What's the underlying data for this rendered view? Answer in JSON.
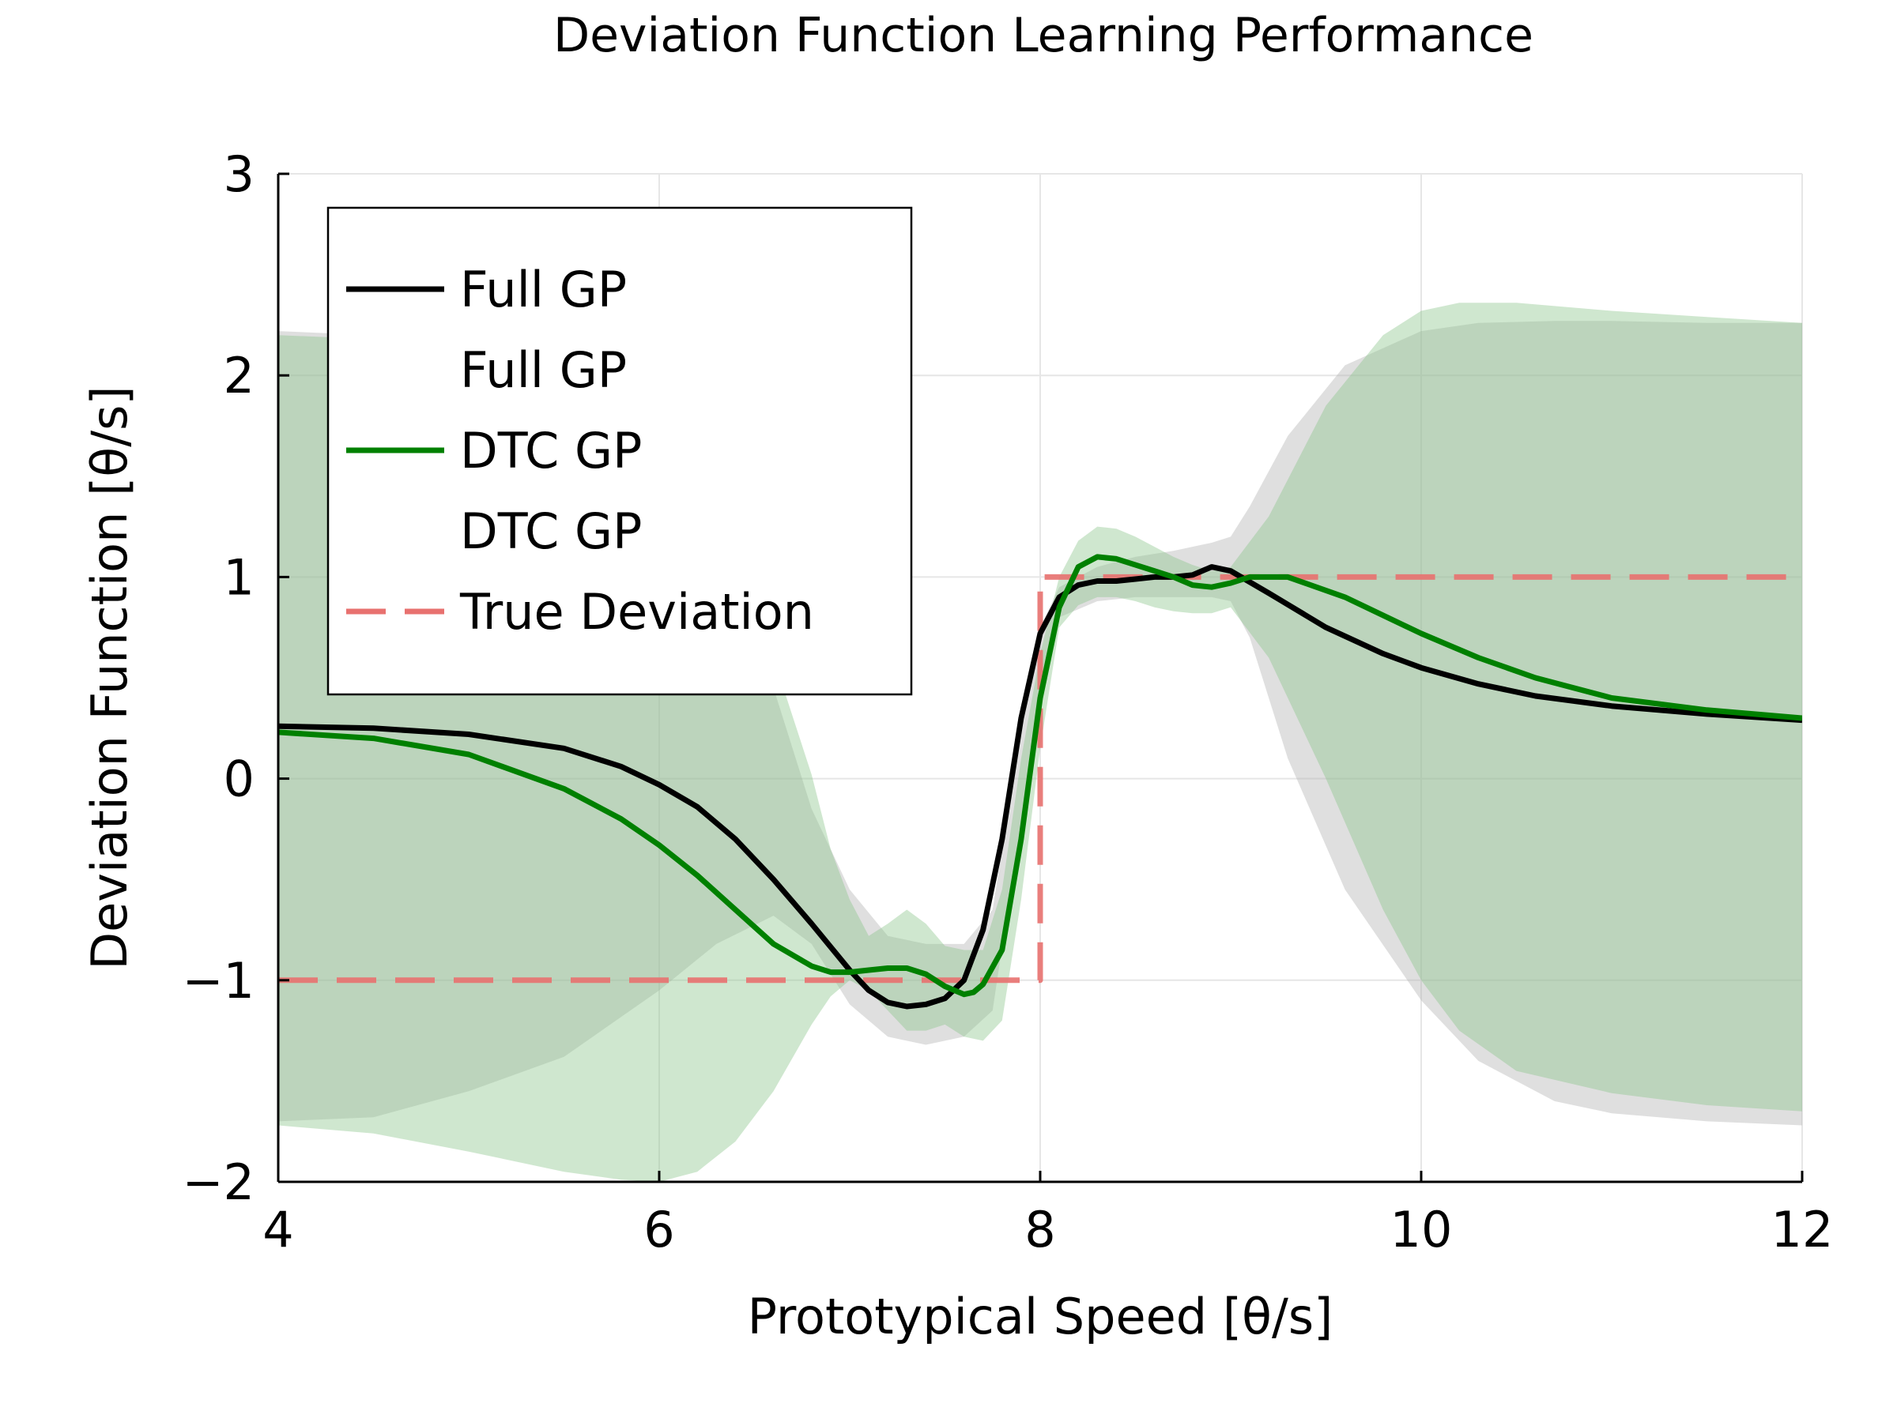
{
  "chart_data": {
    "type": "line",
    "title": "Deviation Function Learning Performance",
    "xlabel": "Prototypical Speed [θ/s]",
    "ylabel": "Deviation Function [θ/s]",
    "xlim": [
      4,
      12
    ],
    "ylim": [
      -2,
      3
    ],
    "xticks": [
      4,
      6,
      8,
      10,
      12
    ],
    "xtick_labels": [
      "4",
      "6",
      "8",
      "10",
      "12"
    ],
    "yticks": [
      -2,
      -1,
      0,
      1,
      2,
      3
    ],
    "ytick_labels": [
      "−2",
      "−1",
      "0",
      "1",
      "2",
      "3"
    ],
    "grid": true,
    "legend_position": "top-left",
    "legend": [
      {
        "label": "Full GP",
        "style": "solid",
        "color": "#000000"
      },
      {
        "label": "Full GP",
        "style": "band",
        "color": "none"
      },
      {
        "label": "DTC GP",
        "style": "solid",
        "color": "#008000"
      },
      {
        "label": "DTC GP",
        "style": "band",
        "color": "none"
      },
      {
        "label": "True Deviation",
        "style": "dashed",
        "color": "#e8716f"
      }
    ],
    "series": [
      {
        "name": "Full GP",
        "kind": "band",
        "color": "#b0b0b0",
        "x": [
          4.0,
          4.5,
          5.0,
          5.5,
          6.0,
          6.3,
          6.6,
          6.8,
          7.0,
          7.2,
          7.4,
          7.6,
          7.75,
          7.9,
          8.0,
          8.1,
          8.3,
          8.5,
          8.7,
          8.9,
          9.0,
          9.1,
          9.3,
          9.6,
          10.0,
          10.3,
          10.7,
          11.0,
          11.5,
          12.0
        ],
        "upper": [
          2.22,
          2.2,
          2.15,
          2.02,
          1.72,
          1.2,
          0.45,
          -0.15,
          -0.55,
          -0.78,
          -0.82,
          -0.82,
          -0.65,
          0.25,
          0.75,
          0.95,
          1.05,
          1.1,
          1.13,
          1.17,
          1.2,
          1.35,
          1.7,
          2.05,
          2.22,
          2.26,
          2.27,
          2.27,
          2.26,
          2.26
        ],
        "lower": [
          -1.7,
          -1.68,
          -1.55,
          -1.38,
          -1.05,
          -0.82,
          -0.68,
          -0.82,
          -1.12,
          -1.28,
          -1.32,
          -1.28,
          -1.15,
          -0.2,
          0.35,
          0.8,
          0.88,
          0.9,
          0.9,
          0.9,
          0.88,
          0.7,
          0.1,
          -0.55,
          -1.1,
          -1.4,
          -1.6,
          -1.66,
          -1.7,
          -1.72
        ]
      },
      {
        "name": "DTC GP",
        "kind": "band",
        "color": "#86c486",
        "x": [
          4.0,
          4.5,
          5.0,
          5.5,
          5.8,
          6.0,
          6.2,
          6.4,
          6.6,
          6.8,
          6.9,
          7.0,
          7.1,
          7.2,
          7.3,
          7.4,
          7.5,
          7.6,
          7.7,
          7.8,
          7.9,
          8.0,
          8.1,
          8.2,
          8.3,
          8.4,
          8.5,
          8.6,
          8.7,
          8.8,
          8.9,
          9.0,
          9.2,
          9.5,
          9.8,
          10.0,
          10.2,
          10.5,
          11.0,
          11.5,
          12.0
        ],
        "upper": [
          2.2,
          2.18,
          2.12,
          1.98,
          1.86,
          1.72,
          1.5,
          1.15,
          0.6,
          0.02,
          -0.35,
          -0.6,
          -0.78,
          -0.72,
          -0.65,
          -0.72,
          -0.83,
          -0.85,
          -0.85,
          -0.55,
          0.1,
          0.62,
          1.0,
          1.18,
          1.25,
          1.24,
          1.2,
          1.15,
          1.1,
          1.06,
          1.03,
          1.05,
          1.3,
          1.85,
          2.2,
          2.32,
          2.36,
          2.36,
          2.32,
          2.29,
          2.26
        ],
        "lower": [
          -1.72,
          -1.76,
          -1.85,
          -1.95,
          -1.99,
          -2.0,
          -1.95,
          -1.8,
          -1.55,
          -1.22,
          -1.08,
          -1.0,
          -1.05,
          -1.15,
          -1.25,
          -1.25,
          -1.22,
          -1.28,
          -1.3,
          -1.2,
          -0.6,
          0.15,
          0.75,
          0.86,
          0.9,
          0.9,
          0.88,
          0.85,
          0.83,
          0.82,
          0.82,
          0.85,
          0.6,
          0.0,
          -0.65,
          -1.0,
          -1.25,
          -1.45,
          -1.56,
          -1.62,
          -1.65
        ]
      },
      {
        "name": "True Deviation",
        "kind": "line",
        "style": "dashed",
        "color": "#e8716f",
        "x": [
          4.0,
          8.0,
          8.0,
          12.0
        ],
        "y": [
          -1.0,
          -1.0,
          1.0,
          1.0
        ]
      },
      {
        "name": "Full GP",
        "kind": "line",
        "style": "solid",
        "color": "#000000",
        "x": [
          4.0,
          4.5,
          5.0,
          5.5,
          5.8,
          6.0,
          6.2,
          6.4,
          6.6,
          6.8,
          7.0,
          7.1,
          7.2,
          7.3,
          7.4,
          7.5,
          7.6,
          7.7,
          7.8,
          7.9,
          8.0,
          8.1,
          8.2,
          8.3,
          8.4,
          8.5,
          8.6,
          8.7,
          8.8,
          8.9,
          9.0,
          9.2,
          9.5,
          9.8,
          10.0,
          10.3,
          10.6,
          11.0,
          11.5,
          12.0
        ],
        "y": [
          0.26,
          0.25,
          0.22,
          0.15,
          0.06,
          -0.03,
          -0.14,
          -0.3,
          -0.5,
          -0.72,
          -0.95,
          -1.05,
          -1.11,
          -1.13,
          -1.12,
          -1.09,
          -1.0,
          -0.75,
          -0.3,
          0.3,
          0.72,
          0.9,
          0.96,
          0.98,
          0.98,
          0.99,
          1.0,
          1.0,
          1.01,
          1.05,
          1.03,
          0.92,
          0.75,
          0.62,
          0.55,
          0.47,
          0.41,
          0.36,
          0.32,
          0.29
        ]
      },
      {
        "name": "DTC GP",
        "kind": "line",
        "style": "solid",
        "color": "#008000",
        "x": [
          4.0,
          4.5,
          5.0,
          5.5,
          5.8,
          6.0,
          6.2,
          6.4,
          6.6,
          6.8,
          6.9,
          7.0,
          7.1,
          7.2,
          7.3,
          7.4,
          7.5,
          7.6,
          7.65,
          7.7,
          7.8,
          7.9,
          8.0,
          8.1,
          8.2,
          8.3,
          8.4,
          8.5,
          8.6,
          8.7,
          8.8,
          8.9,
          9.0,
          9.1,
          9.3,
          9.6,
          10.0,
          10.3,
          10.6,
          11.0,
          11.5,
          12.0
        ],
        "y": [
          0.23,
          0.2,
          0.12,
          -0.05,
          -0.2,
          -0.33,
          -0.48,
          -0.65,
          -0.82,
          -0.93,
          -0.96,
          -0.96,
          -0.95,
          -0.94,
          -0.94,
          -0.97,
          -1.03,
          -1.07,
          -1.06,
          -1.02,
          -0.85,
          -0.3,
          0.4,
          0.85,
          1.05,
          1.1,
          1.09,
          1.06,
          1.03,
          1.0,
          0.96,
          0.95,
          0.97,
          1.0,
          1.0,
          0.9,
          0.72,
          0.6,
          0.5,
          0.4,
          0.34,
          0.3
        ]
      }
    ]
  }
}
